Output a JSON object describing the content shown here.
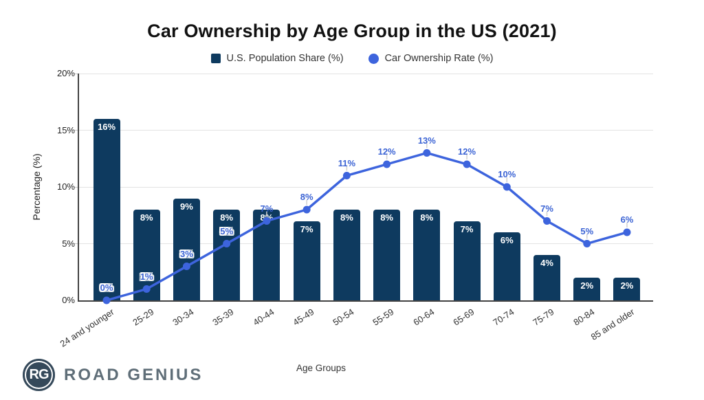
{
  "title": "Car Ownership by Age Group in the US (2021)",
  "legend": {
    "items": [
      {
        "label": "U.S. Population Share (%)",
        "swatch": "square",
        "color": "#0e3a5f"
      },
      {
        "label": "Car Ownership Rate (%)",
        "swatch": "circle",
        "color": "#3d64dd"
      }
    ]
  },
  "y_axis": {
    "title": "Percentage (%)",
    "ticks": [
      {
        "label": "0%",
        "value": 0
      },
      {
        "label": "5%",
        "value": 5
      },
      {
        "label": "10%",
        "value": 10
      },
      {
        "label": "15%",
        "value": 15
      },
      {
        "label": "20%",
        "value": 20
      }
    ]
  },
  "x_axis": {
    "title": "Age Groups"
  },
  "branding": {
    "monogram": "RG",
    "name": "ROAD GENIUS"
  },
  "colors": {
    "bar": "#0e3a5f",
    "line": "#3d64dd",
    "line_label": "#3b63d4",
    "grid": "#e3e3e3",
    "axis": "#424242",
    "leader": "#cfcfcf"
  },
  "chart_data": {
    "type": "bar+line",
    "title": "Car Ownership by Age Group in the US (2021)",
    "xlabel": "Age Groups",
    "ylabel": "Percentage (%)",
    "ylim": [
      0,
      20
    ],
    "grid": true,
    "legend_position": "top",
    "categories": [
      "24 and younger",
      "25-29",
      "30-34",
      "35-39",
      "40-44",
      "45-49",
      "50-54",
      "55-59",
      "60-64",
      "65-69",
      "70-74",
      "75-79",
      "80-84",
      "85 and older"
    ],
    "series": [
      {
        "name": "U.S. Population Share (%)",
        "type": "bar",
        "color": "#0e3a5f",
        "values": [
          16,
          8,
          9,
          8,
          8,
          7,
          8,
          8,
          8,
          7,
          6,
          4,
          2,
          2
        ],
        "labels": [
          "16%",
          "8%",
          "9%",
          "8%",
          "8%",
          "7%",
          "8%",
          "8%",
          "8%",
          "7%",
          "6%",
          "4%",
          "2%",
          "2%"
        ]
      },
      {
        "name": "Car Ownership Rate (%)",
        "type": "line",
        "color": "#3d64dd",
        "values": [
          0,
          1,
          3,
          5,
          7,
          8,
          11,
          12,
          13,
          12,
          10,
          7,
          5,
          6
        ],
        "labels": [
          "0%",
          "1%",
          "3%",
          "5%",
          "7%",
          "8%",
          "11%",
          "12%",
          "13%",
          "12%",
          "10%",
          "7%",
          "5%",
          "6%"
        ],
        "outlined_label_indices": [
          0,
          1,
          2,
          3
        ]
      }
    ]
  }
}
